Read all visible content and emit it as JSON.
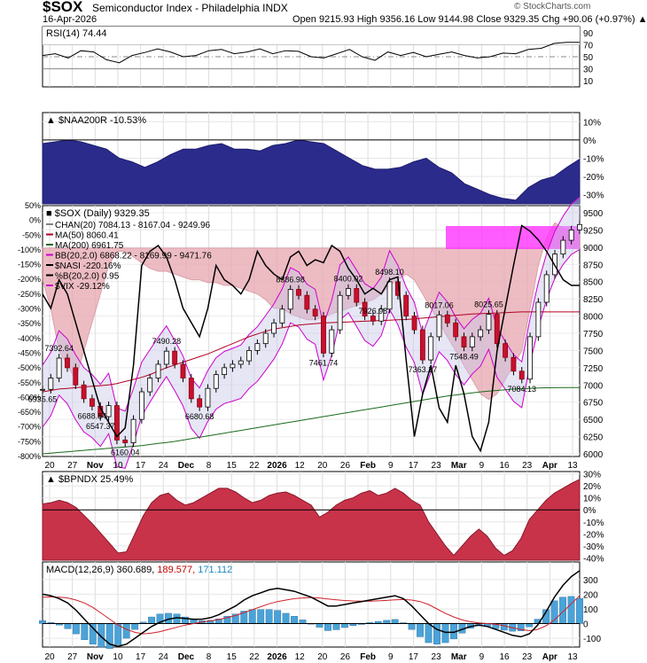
{
  "header": {
    "symbol": "$SOX",
    "name": "Semiconductor Index - Philadelphia",
    "exchange": "INDX",
    "date": "16-Apr-2026",
    "ohlc": "Open 9215.93  High 9356.16  Low 9144.98  Close 9329.35  Chg +90.06 (+0.97%) ▲",
    "brand": "© StockCharts.com"
  },
  "chart_data": [
    {
      "type": "line",
      "title": "RSI(14) 74.44",
      "yticks": [
        "90",
        "70",
        "50",
        "30",
        "10"
      ],
      "ylim": [
        0,
        100
      ],
      "reference_lines": [
        70,
        50,
        30
      ],
      "series": [
        {
          "name": "RSI(14)",
          "values": [
            52,
            55,
            48,
            60,
            58,
            45,
            40,
            52,
            57,
            63,
            58,
            50,
            52,
            60,
            62,
            55,
            58,
            63,
            55,
            60,
            59,
            50,
            48,
            55,
            62,
            50,
            44,
            58,
            52,
            57,
            50,
            54,
            58,
            52,
            48,
            50,
            56,
            55,
            62,
            64,
            72,
            74,
            74
          ]
        }
      ]
    },
    {
      "type": "area",
      "title": "$NAA200R -10.53%",
      "yticks": [
        "10%",
        "0%",
        "-10%",
        "-20%",
        "-30%"
      ],
      "ylim": [
        -35,
        15
      ],
      "series": [
        {
          "name": "$NAA200R",
          "values": [
            -2,
            -1,
            0,
            -1,
            -3,
            -5,
            -10,
            -12,
            -15,
            -12,
            -8,
            -5,
            -5,
            -3,
            -2,
            -5,
            -5,
            -6,
            -3,
            -2,
            0,
            -1,
            -2,
            -6,
            -10,
            -14,
            -16,
            -16,
            -15,
            -12,
            -10,
            -15,
            -18,
            -24,
            -27,
            -30,
            -32,
            -33,
            -26,
            -22,
            -20,
            -15,
            -10.53
          ]
        }
      ]
    },
    {
      "type": "candlestick",
      "title": "$SOX (Daily) 9329.35",
      "legend": [
        "CHAN(20) 7084.13 - 8167.04 - 9249.96",
        "MA(50) 8060.41",
        "MA(200) 6961.75",
        "BB(20,2.0) 6868.22 - 8169.99 - 9471.76",
        "$NASI -220.16%",
        "%B(20,2.0) 0.95",
        "$VIX -29.12%"
      ],
      "yticks_right": [
        "9500",
        "9250",
        "9000",
        "8750",
        "8500",
        "8250",
        "8000",
        "7750",
        "7500",
        "7250",
        "7000",
        "6750",
        "6500",
        "6250",
        "6000"
      ],
      "yticks_left": [
        "50%",
        "0%",
        "-50%",
        "-100%",
        "-150%",
        "-200%",
        "-250%",
        "-300%",
        "-350%",
        "-400%",
        "-450%",
        "-500%",
        "-550%",
        "-600%",
        "-650%",
        "-700%",
        "-750%",
        "-800%"
      ],
      "xticks": [
        "20",
        "27",
        "Nov",
        "10",
        "17",
        "24",
        "Dec",
        "8",
        "15",
        "22",
        "2026",
        "12",
        "20",
        "26",
        "Feb",
        "9",
        "17",
        "23",
        "Mar",
        "9",
        "16",
        "23",
        "Apr",
        "13"
      ],
      "ylim": [
        6000,
        9500
      ],
      "annotations": [
        "6935.65",
        "7392.64",
        "6547.37",
        "6688.84",
        "6160.04",
        "7490.28",
        "6680.68",
        "8386.98",
        "8400.02",
        "8498.10",
        "7461.74",
        "7926.98",
        "8017.06",
        "8025.65",
        "7363.17",
        "7548.49",
        "7084.13"
      ],
      "series": [
        {
          "name": "$SOX",
          "values": [
            6936,
            7100,
            7390,
            7250,
            7000,
            6800,
            6690,
            6540,
            6700,
            6200,
            6160,
            6500,
            6900,
            7100,
            7300,
            7490,
            7300,
            7100,
            6800,
            6680,
            6950,
            7150,
            7250,
            7300,
            7350,
            7500,
            7600,
            7750,
            7900,
            8100,
            8387,
            8300,
            8100,
            8000,
            7462,
            7800,
            8300,
            8400,
            8200,
            8000,
            7927,
            8100,
            8498,
            8300,
            8000,
            7800,
            7363,
            7700,
            8017,
            7900,
            7700,
            7550,
            7700,
            7800,
            8026,
            7600,
            7400,
            7200,
            7084,
            7700,
            8200,
            8600,
            8900,
            9100,
            9250,
            9329
          ]
        },
        {
          "name": "MA(50)",
          "values": [
            6900,
            6920,
            6940,
            6950,
            6960,
            6970,
            6980,
            6990,
            7000,
            7020,
            7050,
            7080,
            7110,
            7150,
            7200,
            7250,
            7290,
            7330,
            7370,
            7410,
            7450,
            7500,
            7550,
            7600,
            7650,
            7700,
            7740,
            7780,
            7810,
            7830,
            7850,
            7870,
            7880,
            7890,
            7900,
            7905,
            7910,
            7915,
            7920,
            7925,
            7930,
            7935,
            7940,
            7945,
            7950,
            7960,
            7970,
            7980,
            7990,
            8000,
            8010,
            8020,
            8030,
            8035,
            8040,
            8045,
            8050,
            8055,
            8060,
            8060,
            8060,
            8060,
            8060,
            8060,
            8060,
            8060
          ]
        },
        {
          "name": "MA(200)",
          "values": [
            6000,
            6010,
            6020,
            6030,
            6040,
            6050,
            6060,
            6070,
            6080,
            6090,
            6100,
            6110,
            6120,
            6135,
            6150,
            6165,
            6180,
            6200,
            6220,
            6240,
            6260,
            6280,
            6300,
            6320,
            6340,
            6360,
            6380,
            6400,
            6420,
            6440,
            6460,
            6480,
            6500,
            6520,
            6540,
            6560,
            6580,
            6600,
            6620,
            6640,
            6660,
            6680,
            6700,
            6720,
            6740,
            6760,
            6780,
            6800,
            6820,
            6840,
            6855,
            6870,
            6885,
            6900,
            6910,
            6920,
            6930,
            6940,
            6945,
            6950,
            6955,
            6958,
            6960,
            6961,
            6962,
            6962
          ]
        },
        {
          "name": "$NASI",
          "values": [
            -250,
            -300,
            -200,
            -250,
            -350,
            -450,
            -550,
            -650,
            -700,
            -750,
            -720,
            -500,
            -150,
            -100,
            -80,
            -120,
            -200,
            -300,
            -350,
            -400,
            -300,
            -150,
            -200,
            -220,
            -250,
            -200,
            -100,
            -150,
            -180,
            -200,
            -120,
            -100,
            -150,
            -130,
            -140,
            -80,
            -100,
            -160,
            -200,
            -250,
            -230,
            -250,
            -200,
            -190,
            -480,
            -750,
            -600,
            -500,
            -650,
            -700,
            -500,
            -600,
            -750,
            -800,
            -700,
            -450,
            -300,
            -150,
            -10,
            -30,
            -60,
            -100,
            -150,
            -200,
            -220,
            -220
          ]
        },
        {
          "name": "$VIX",
          "values": [
            -200,
            -300,
            -450,
            -500,
            -550,
            -450,
            -350,
            -250,
            -150,
            -100,
            -100,
            -120,
            -140,
            -160,
            -170,
            -170,
            -180,
            -190,
            -200,
            -200,
            -210,
            -210,
            -220,
            -220,
            -230,
            -240,
            -250,
            -270,
            -300,
            -300,
            -320,
            -330,
            -340,
            -340,
            -330,
            -320,
            -310,
            -300,
            -290,
            -280,
            -270,
            -250,
            -220,
            -200,
            -180,
            -200,
            -250,
            -300,
            -350,
            -400,
            -450,
            -500,
            -550,
            -600,
            -620,
            -600,
            -550,
            -500,
            -450,
            -300,
            -150,
            -50,
            0,
            -20,
            -29,
            -29
          ]
        }
      ]
    },
    {
      "type": "area",
      "title": "$BPNDX 25.49%",
      "yticks": [
        "30%",
        "20%",
        "10%",
        "0%",
        "-10%",
        "-20%",
        "-30%",
        "-40%"
      ],
      "ylim": [
        -42,
        32
      ],
      "series": [
        {
          "name": "$BPNDX",
          "values": [
            5,
            6,
            8,
            6,
            2,
            -5,
            -12,
            -20,
            -28,
            -36,
            -35,
            -20,
            -5,
            6,
            12,
            14,
            8,
            4,
            6,
            10,
            14,
            18,
            18,
            15,
            10,
            6,
            8,
            12,
            14,
            15,
            12,
            8,
            4,
            -6,
            -2,
            4,
            8,
            10,
            14,
            16,
            12,
            14,
            18,
            14,
            8,
            4,
            -10,
            -20,
            -30,
            -38,
            -30,
            -22,
            -16,
            -22,
            -32,
            -38,
            -34,
            -24,
            -8,
            0,
            8,
            14,
            18,
            22,
            25.49
          ]
        }
      ]
    },
    {
      "type": "line",
      "title": "MACD(12,26,9) 360.689, 189.577, 171.112",
      "title_parts": [
        "MACD(12,26,9) 360.689,",
        "189.577,",
        "171.112"
      ],
      "yticks": [
        "300",
        "200",
        "100",
        "0",
        "-100"
      ],
      "ylim": [
        -160,
        420
      ],
      "xticks": [
        "20",
        "27",
        "Nov",
        "10",
        "17",
        "24",
        "Dec",
        "8",
        "15",
        "22",
        "2026",
        "12",
        "20",
        "26",
        "Feb",
        "9",
        "17",
        "23",
        "Mar",
        "9",
        "16",
        "23",
        "Apr",
        "13"
      ],
      "series": [
        {
          "name": "MACD",
          "values": [
            200,
            190,
            170,
            140,
            90,
            30,
            -30,
            -90,
            -140,
            -155,
            -140,
            -100,
            -60,
            -20,
            10,
            30,
            40,
            35,
            30,
            30,
            40,
            60,
            90,
            120,
            160,
            190,
            210,
            230,
            240,
            230,
            220,
            200,
            180,
            150,
            120,
            120,
            130,
            140,
            150,
            160,
            170,
            180,
            190,
            170,
            120,
            60,
            0,
            -40,
            -60,
            -60,
            -40,
            -20,
            -10,
            -20,
            -40,
            -60,
            -80,
            -90,
            -70,
            -10,
            80,
            180,
            260,
            320,
            361
          ]
        },
        {
          "name": "Signal",
          "values": [
            180,
            182,
            180,
            175,
            160,
            140,
            110,
            70,
            30,
            -10,
            -40,
            -60,
            -70,
            -65,
            -55,
            -40,
            -25,
            -10,
            0,
            10,
            18,
            28,
            40,
            55,
            75,
            95,
            115,
            135,
            150,
            160,
            170,
            175,
            178,
            175,
            168,
            162,
            157,
            154,
            153,
            153,
            155,
            158,
            162,
            164,
            160,
            150,
            130,
            100,
            70,
            45,
            25,
            12,
            5,
            0,
            -5,
            -15,
            -28,
            -40,
            -48,
            -40,
            -15,
            25,
            80,
            135,
            190
          ]
        },
        {
          "name": "Histogram",
          "values": [
            20,
            8,
            -10,
            -35,
            -70,
            -110,
            -140,
            -160,
            -170,
            -145,
            -100,
            -40,
            10,
            45,
            65,
            70,
            65,
            45,
            30,
            20,
            22,
            32,
            50,
            65,
            85,
            95,
            95,
            95,
            90,
            70,
            50,
            25,
            2,
            -25,
            -48,
            -42,
            -27,
            -14,
            -3,
            7,
            15,
            22,
            28,
            6,
            -40,
            -90,
            -130,
            -140,
            -130,
            -105,
            -65,
            -32,
            -15,
            -20,
            -35,
            -45,
            -52,
            -50,
            -22,
            30,
            95,
            155,
            180,
            185,
            171
          ]
        }
      ]
    }
  ]
}
